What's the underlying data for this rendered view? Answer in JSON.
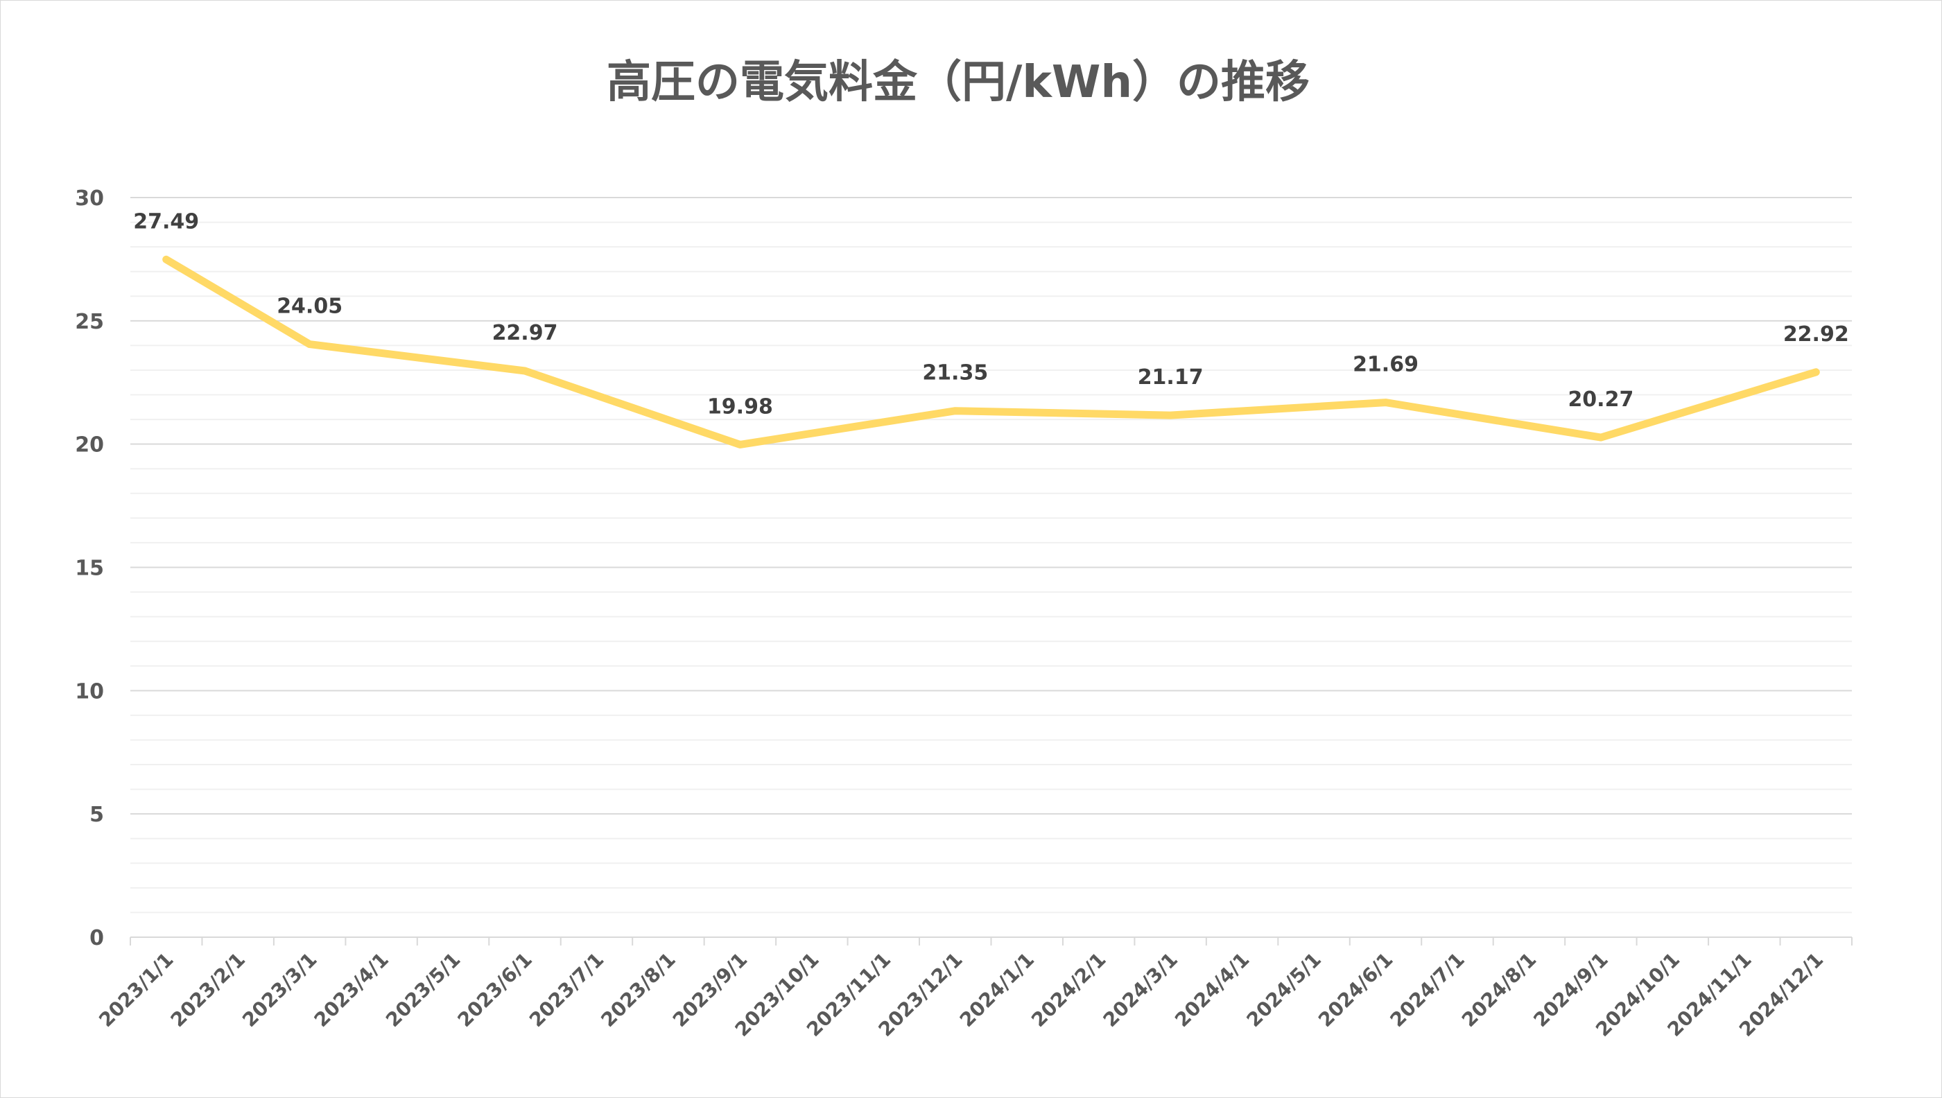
{
  "chart_data": {
    "type": "line",
    "title": "高圧の電気料金（円/kWh）の推移",
    "xlabel": "",
    "ylabel": "",
    "ylim": [
      0,
      30
    ],
    "y_major_ticks": [
      "0",
      "5",
      "10",
      "15",
      "20",
      "25",
      "30"
    ],
    "y_minor_step": 1,
    "grid": true,
    "legend": "none",
    "categories": [
      "2023/1/1",
      "2023/2/1",
      "2023/3/1",
      "2023/4/1",
      "2023/5/1",
      "2023/6/1",
      "2023/7/1",
      "2023/8/1",
      "2023/9/1",
      "2023/10/1",
      "2023/11/1",
      "2023/12/1",
      "2024/1/1",
      "2024/2/1",
      "2024/3/1",
      "2024/4/1",
      "2024/5/1",
      "2024/6/1",
      "2024/7/1",
      "2024/8/1",
      "2024/9/1",
      "2024/10/1",
      "2024/11/1",
      "2024/12/1"
    ],
    "series": [
      {
        "color": "#ffd966",
        "points": [
          {
            "x": "2023/1/1",
            "y": 27.49,
            "label": "27.49"
          },
          {
            "x": "2023/3/1",
            "y": 24.05,
            "label": "24.05"
          },
          {
            "x": "2023/6/1",
            "y": 22.97,
            "label": "22.97"
          },
          {
            "x": "2023/9/1",
            "y": 19.98,
            "label": "19.98"
          },
          {
            "x": "2023/12/1",
            "y": 21.35,
            "label": "21.35"
          },
          {
            "x": "2024/3/1",
            "y": 21.17,
            "label": "21.17"
          },
          {
            "x": "2024/6/1",
            "y": 21.69,
            "label": "21.69"
          },
          {
            "x": "2024/9/1",
            "y": 20.27,
            "label": "20.27"
          },
          {
            "x": "2024/12/1",
            "y": 22.92,
            "label": "22.92"
          }
        ]
      }
    ]
  }
}
